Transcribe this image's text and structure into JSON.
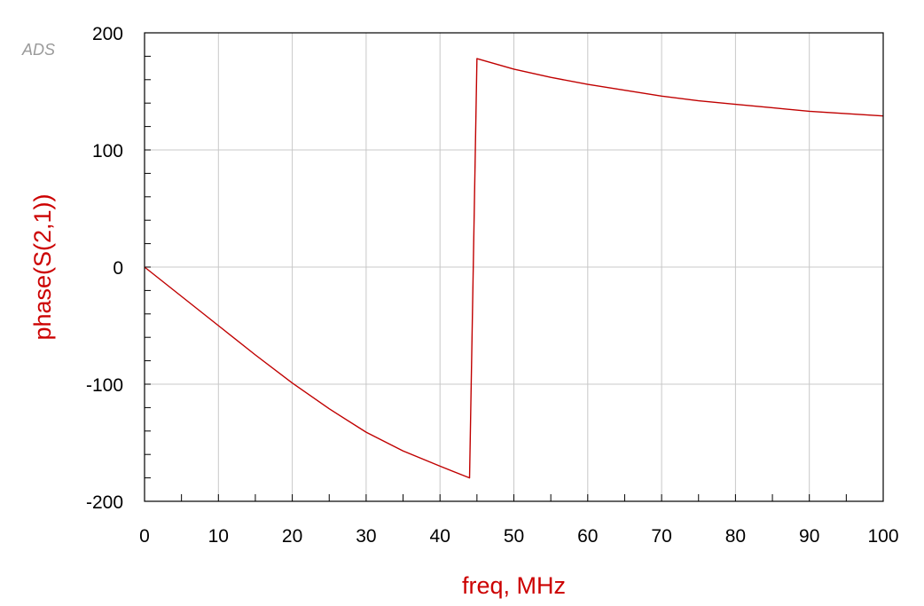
{
  "watermark": "ADS",
  "chart_data": {
    "type": "line",
    "title": "",
    "xlabel": "freq, MHz",
    "ylabel": "phase(S(2,1))",
    "xlim": [
      0,
      100
    ],
    "ylim": [
      -200,
      200
    ],
    "x_ticks": [
      0,
      10,
      20,
      30,
      40,
      50,
      60,
      70,
      80,
      90,
      100
    ],
    "y_ticks": [
      -200,
      -100,
      0,
      100,
      200
    ],
    "grid": true,
    "legend": "none",
    "colors": {
      "series": "#c00000",
      "axis_label": "#cc0000",
      "grid": "#c8c8c8",
      "frame": "#000000"
    },
    "series": [
      {
        "x": [
          0,
          5,
          10,
          15,
          20,
          25,
          30,
          35,
          40,
          44,
          45,
          50,
          55,
          60,
          65,
          70,
          75,
          80,
          85,
          90,
          95,
          100
        ],
        "y": [
          0,
          -25,
          -50,
          -75,
          -99,
          -121,
          -141,
          -157,
          -170,
          -180,
          178,
          169,
          162,
          156,
          151,
          146,
          142,
          139,
          136,
          133,
          131,
          129
        ]
      }
    ]
  }
}
